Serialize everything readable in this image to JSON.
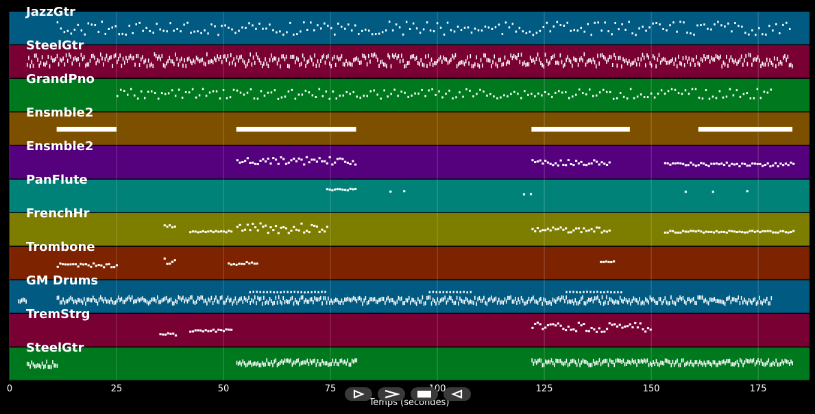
{
  "tracks": [
    {
      "name": "JazzGtr",
      "color": "#005a82"
    },
    {
      "name": "SteelGtr",
      "color": "#780032"
    },
    {
      "name": "GrandPno",
      "color": "#00781e"
    },
    {
      "name": "Ensmble2",
      "color": "#7d5000"
    },
    {
      "name": "Ensmble2",
      "color": "#55007d"
    },
    {
      "name": "PanFlute",
      "color": "#008278"
    },
    {
      "name": "FrenchHr",
      "color": "#7d7d00"
    },
    {
      "name": "Trombone",
      "color": "#7d2300"
    },
    {
      "name": "GM Drums",
      "color": "#005a82"
    },
    {
      "name": "TremStrg",
      "color": "#780032"
    },
    {
      "name": "SteelGtr",
      "color": "#00781e"
    }
  ],
  "axis": {
    "xmax_seconds": 187,
    "ticks": [
      "0",
      "25",
      "50",
      "75",
      "100",
      "125",
      "150",
      "175"
    ],
    "title": "Temps (secondes)"
  },
  "controls": {
    "play_icon": "play-outline-icon",
    "forward_icon": "chevron-right-icon",
    "stop_icon": "stop-icon",
    "back_icon": "back-triangle-icon"
  },
  "activity": [
    [
      [
        11,
        183,
        "dots",
        0.5,
        0.2
      ]
    ],
    [
      [
        4,
        183,
        "dense",
        0.45,
        0.18
      ]
    ],
    [
      [
        25,
        178,
        "dots",
        0.45,
        0.15
      ]
    ],
    [
      [
        11,
        25,
        "block",
        0.5,
        0
      ],
      [
        53,
        81,
        "block",
        0.5,
        0.05
      ],
      [
        122,
        145,
        "block",
        0.5,
        0
      ],
      [
        161,
        183,
        "block",
        0.5,
        0.05
      ]
    ],
    [
      [
        53,
        81,
        "line",
        0.45,
        0.12
      ],
      [
        122,
        140,
        "line",
        0.5,
        0.08
      ],
      [
        153,
        183,
        "line",
        0.55,
        0.06
      ]
    ],
    [
      [
        74,
        81,
        "line",
        0.3,
        0.03
      ],
      [
        84,
        93,
        "sparse",
        0.35,
        0.02
      ],
      [
        120,
        122,
        "sparse",
        0.4,
        0.05
      ],
      [
        153,
        176,
        "sparse",
        0.35,
        0.02
      ]
    ],
    [
      [
        36,
        39,
        "line",
        0.45,
        0.1
      ],
      [
        42,
        52,
        "line",
        0.55,
        0.03
      ],
      [
        53,
        74,
        "line",
        0.45,
        0.15
      ],
      [
        122,
        140,
        "line",
        0.5,
        0.08
      ],
      [
        153,
        183,
        "line",
        0.55,
        0.03
      ]
    ],
    [
      [
        11,
        25,
        "line",
        0.55,
        0.06
      ],
      [
        36,
        39,
        "line",
        0.45,
        0.1
      ],
      [
        51,
        58,
        "line",
        0.5,
        0.04
      ],
      [
        138,
        141,
        "line",
        0.45,
        0.02
      ]
    ],
    [
      [
        2,
        4,
        "dense",
        0.6,
        0.05
      ],
      [
        11,
        178,
        "dense",
        0.6,
        0.1
      ],
      [
        56,
        74,
        "dots",
        0.35,
        0.01
      ],
      [
        98,
        108,
        "dots",
        0.35,
        0.01
      ],
      [
        130,
        143,
        "dots",
        0.35,
        0.01
      ]
    ],
    [
      [
        35,
        39,
        "line",
        0.6,
        0.04
      ],
      [
        42,
        52,
        "line",
        0.5,
        0.04
      ],
      [
        122,
        150,
        "line",
        0.4,
        0.14
      ]
    ],
    [
      [
        4,
        11,
        "dense",
        0.5,
        0.08
      ],
      [
        53,
        81,
        "dense",
        0.45,
        0.08
      ],
      [
        122,
        183,
        "dense",
        0.45,
        0.08
      ]
    ]
  ]
}
